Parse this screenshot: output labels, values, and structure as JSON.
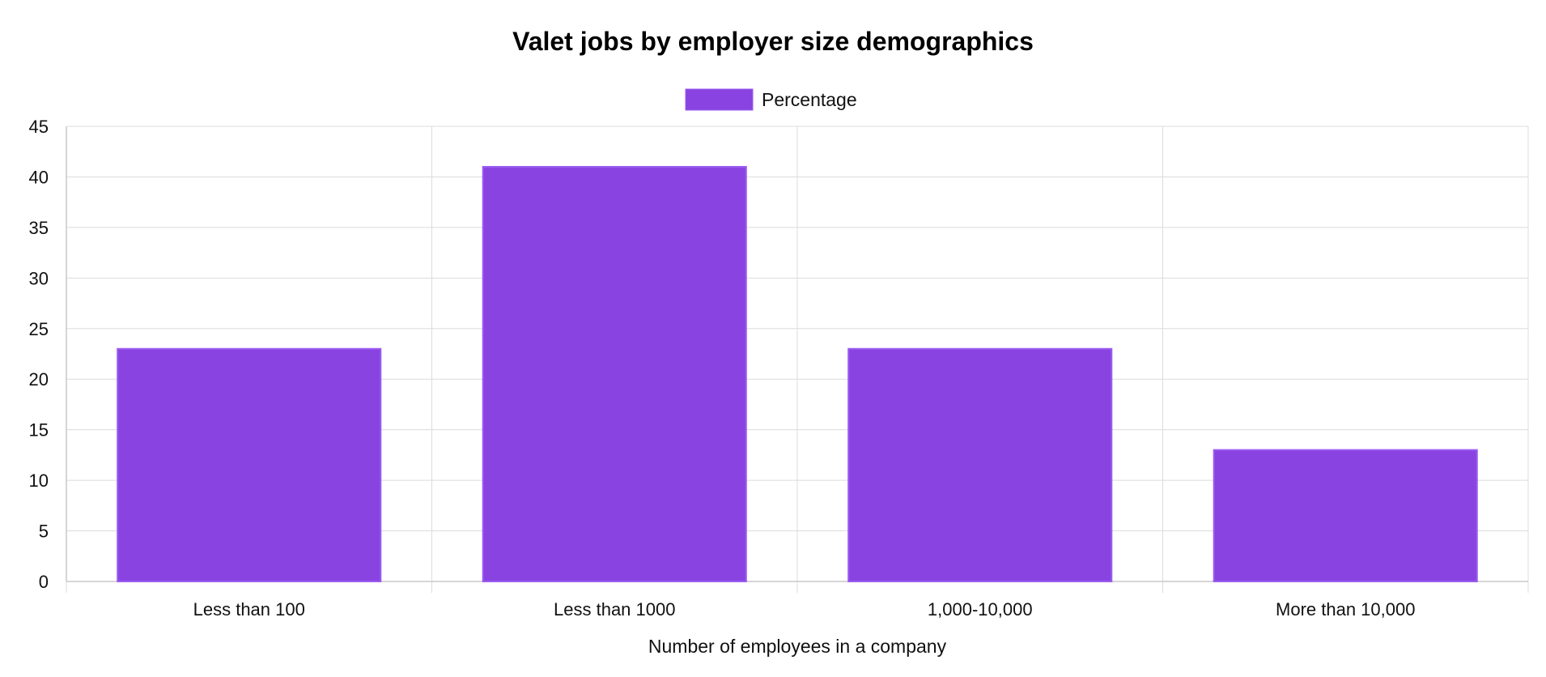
{
  "chart_data": {
    "type": "bar",
    "title": "Valet jobs by employer size demographics",
    "xlabel": "Number of employees in a company",
    "ylabel": "",
    "categories": [
      "Less than 100",
      "Less than 1000",
      "1,000-10,000",
      "More than 10,000"
    ],
    "series": [
      {
        "name": "Percentage",
        "values": [
          23,
          41,
          23,
          13
        ]
      }
    ],
    "ylim": [
      0,
      45
    ],
    "yticks": [
      0,
      5,
      10,
      15,
      20,
      25,
      30,
      35,
      40,
      45
    ],
    "grid": true,
    "legend_position": "top-center",
    "colors": {
      "bar_fill": "#8843e0",
      "bar_border": "#9b5cf0"
    }
  }
}
